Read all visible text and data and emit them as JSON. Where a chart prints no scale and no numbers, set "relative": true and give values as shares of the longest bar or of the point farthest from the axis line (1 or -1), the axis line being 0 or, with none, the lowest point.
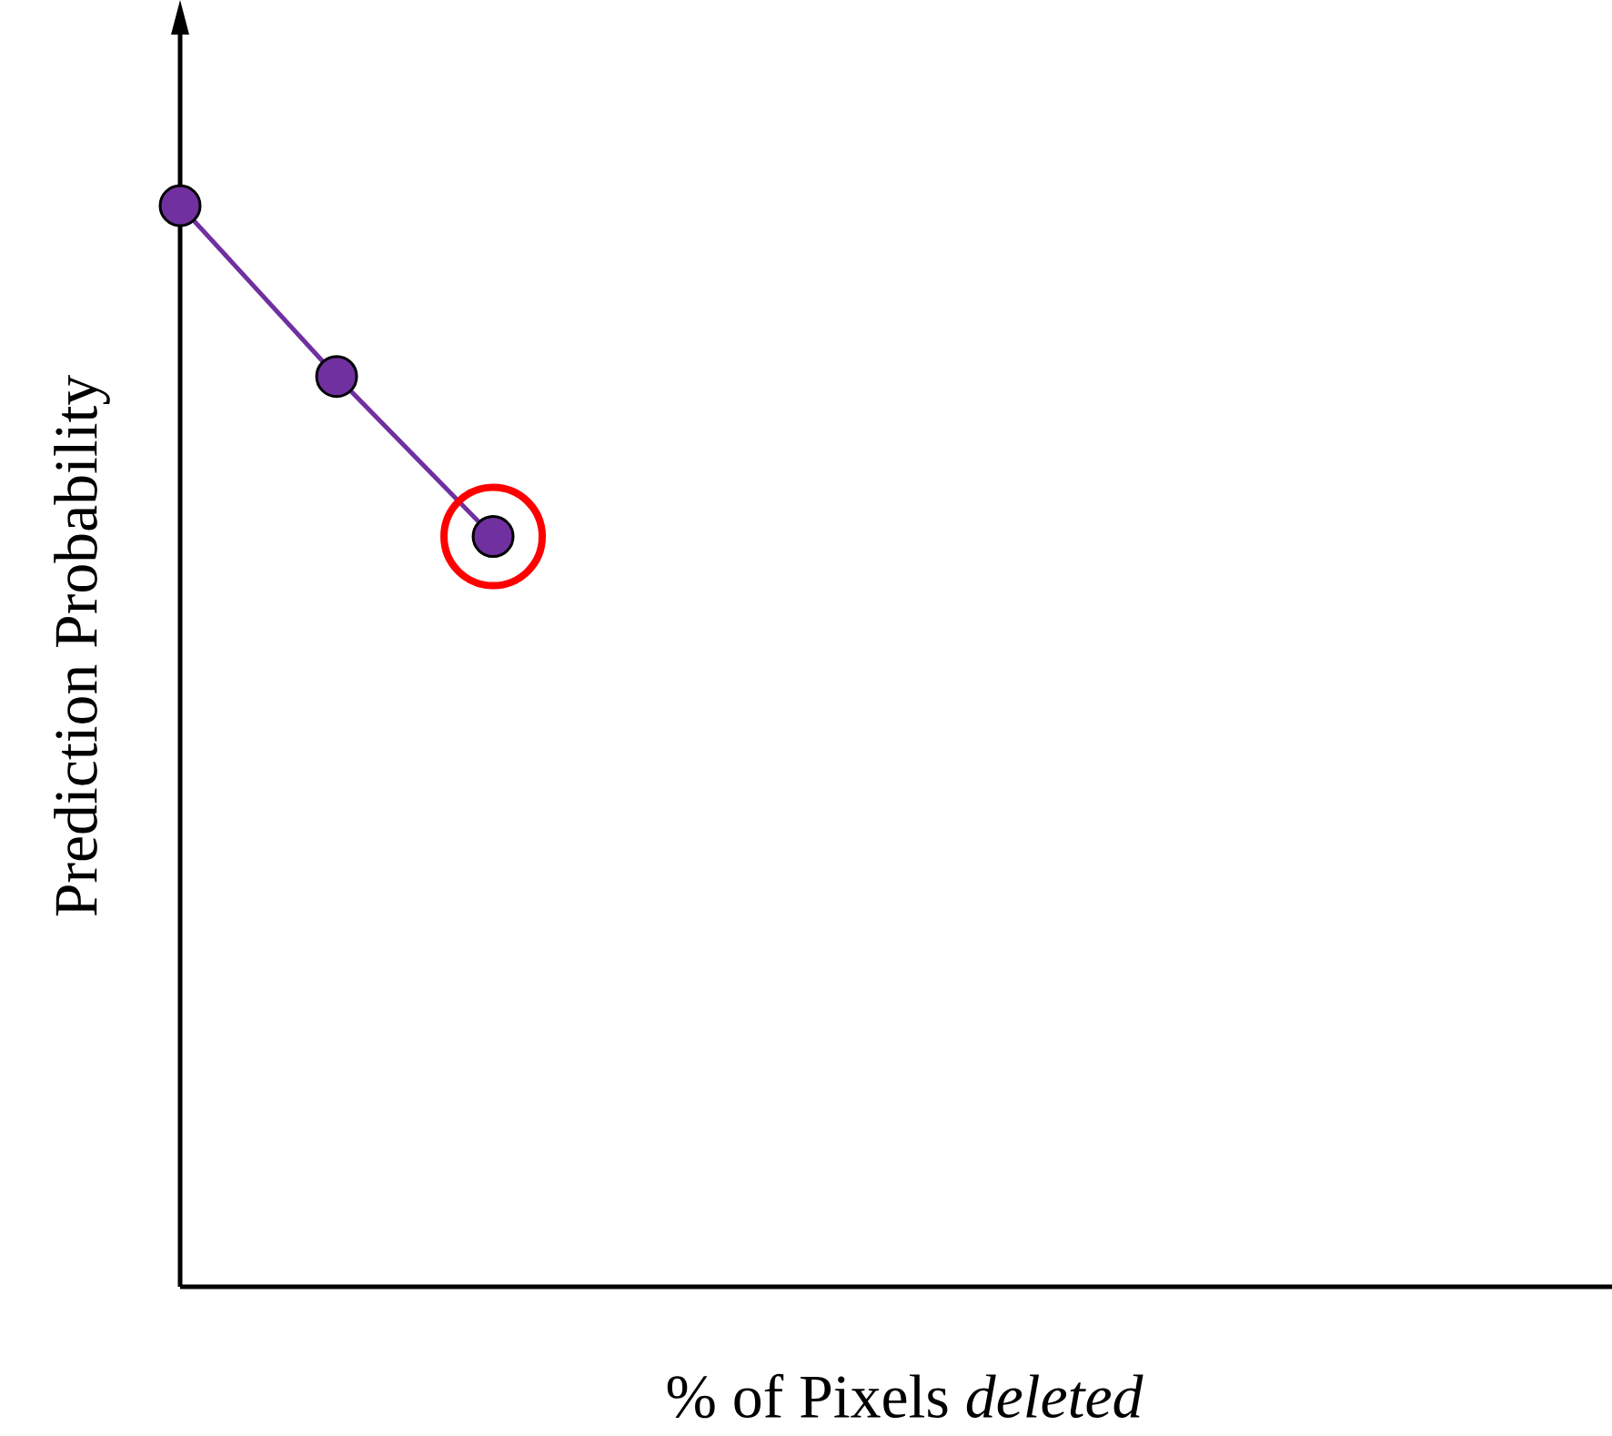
{
  "chart_data": {
    "type": "line",
    "xlabel": "% of Pixels *deleted*",
    "ylabel": "Prediction Probability",
    "categories": [
      null,
      null,
      null
    ],
    "series": [
      {
        "color": "#7030a0",
        "values": [
          1,
          0.842,
          0.694
        ]
      }
    ],
    "relative": true,
    "marker": "circle",
    "line_style": "solid"
  }
}
